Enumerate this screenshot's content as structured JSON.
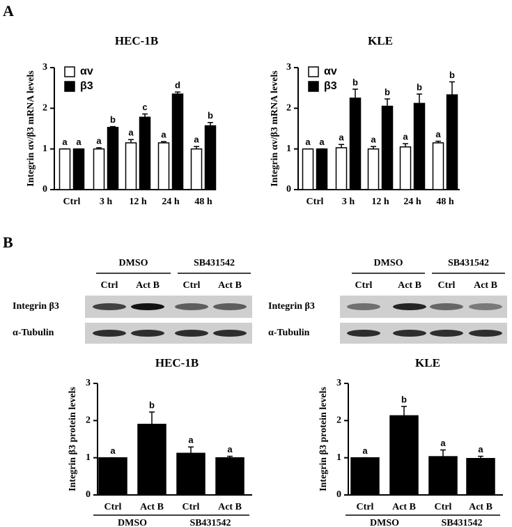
{
  "panel_labels": [
    "A",
    "B"
  ],
  "blots": [
    {
      "headers": [
        "DMSO",
        "SB431542"
      ],
      "lanes": [
        "Ctrl",
        "Act B",
        "Ctrl",
        "Act B"
      ],
      "rows": [
        "Integrin β3",
        "α-Tubulin"
      ]
    },
    {
      "headers": [
        "DMSO",
        "SB431542"
      ],
      "lanes": [
        "Ctrl",
        "Act B",
        "Ctrl",
        "Act B"
      ],
      "rows": [
        "Integrin β3",
        "α-Tubulin"
      ]
    }
  ],
  "chart_data": [
    {
      "type": "bar",
      "title": "HEC-1B",
      "y_label": "Integrin αv/β3 mRNA levels",
      "categories": [
        "Ctrl",
        "3 h",
        "12 h",
        "24 h",
        "48 h"
      ],
      "series": [
        {
          "name": "αv",
          "color": "#ffffff",
          "values": [
            1,
            1,
            1.15,
            1.15,
            1.0
          ],
          "errors": [
            0,
            0.03,
            0.08,
            0.03,
            0.06
          ],
          "labels": [
            "a",
            "a",
            "a",
            "a",
            "a"
          ]
        },
        {
          "name": "β3",
          "color": "#000000",
          "values": [
            1,
            1.53,
            1.78,
            2.35,
            1.57
          ],
          "errors": [
            0,
            0.02,
            0.08,
            0.05,
            0.08
          ],
          "labels": [
            "a",
            "b",
            "c",
            "d",
            "b"
          ]
        }
      ],
      "ylim": [
        0,
        3
      ],
      "yticks": [
        0,
        1,
        2,
        3
      ],
      "legend": "top-left"
    },
    {
      "type": "bar",
      "title": "KLE",
      "y_label": "Integrin αv/β3 mRNA levels",
      "categories": [
        "Ctrl",
        "3 h",
        "12 h",
        "24 h",
        "48 h"
      ],
      "series": [
        {
          "name": "αv",
          "color": "#ffffff",
          "values": [
            1,
            1.03,
            1,
            1.05,
            1.15
          ],
          "errors": [
            0,
            0.08,
            0.06,
            0.08,
            0.04
          ],
          "labels": [
            "a",
            "a",
            "a",
            "a",
            "a"
          ]
        },
        {
          "name": "β3",
          "color": "#000000",
          "values": [
            1,
            2.25,
            2.05,
            2.12,
            2.33
          ],
          "errors": [
            0,
            0.22,
            0.18,
            0.23,
            0.32
          ],
          "labels": [
            "a",
            "b",
            "b",
            "b",
            "b"
          ]
        }
      ],
      "ylim": [
        0,
        3
      ],
      "yticks": [
        0,
        1,
        2,
        3
      ],
      "legend": "top-left"
    },
    {
      "type": "bar",
      "title": "HEC-1B",
      "y_label": "Integrin β3 protein levels",
      "categories": [
        "Ctrl",
        "Act B",
        "Ctrl",
        "Act B"
      ],
      "groups": [
        "DMSO",
        "SB431542"
      ],
      "series": [
        {
          "color": "#000000",
          "values": [
            1,
            1.9,
            1.12,
            1.0
          ],
          "errors": [
            0,
            0.33,
            0.17,
            0.04
          ],
          "labels": [
            "a",
            "b",
            "a",
            "a"
          ]
        }
      ],
      "ylim": [
        0,
        3
      ],
      "yticks": [
        0,
        1,
        2,
        3
      ]
    },
    {
      "type": "bar",
      "title": "KLE",
      "y_label": "Integrin β3 protein levels",
      "categories": [
        "Ctrl",
        "Act B",
        "Ctrl",
        "Act B"
      ],
      "groups": [
        "DMSO",
        "SB431542"
      ],
      "series": [
        {
          "color": "#000000",
          "values": [
            1,
            2.13,
            1.03,
            0.98
          ],
          "errors": [
            0,
            0.25,
            0.18,
            0.06
          ],
          "labels": [
            "a",
            "b",
            "a",
            "a"
          ]
        }
      ],
      "ylim": [
        0,
        3
      ],
      "yticks": [
        0,
        1,
        2,
        3
      ]
    }
  ]
}
